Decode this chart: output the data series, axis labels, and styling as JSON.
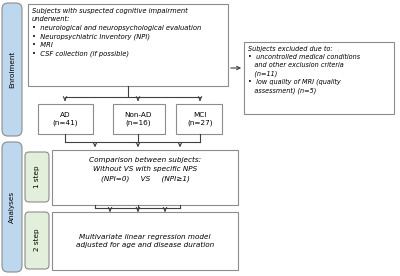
{
  "bg_color": "#ffffff",
  "enrolment_box_color": "#bdd7ee",
  "analyses_box_color": "#bdd7ee",
  "step_box_color": "#e2efda",
  "flow_box_color": "#ffffff",
  "flow_box_edge": "#8c8c8c",
  "side_label_edge": "#8c8c8c",
  "arrow_color": "#404040",
  "main_box_text": "Subjects with suspected cognitive impairment\nunderwent:\n•  neurological and neuropsychological evaluation\n•  Neuropsychiatric Inventory (NPI)\n•  MRI\n•  CSF collection (if possible)",
  "exclude_box_text": "Subjects excluded due to:\n•  uncontrolled medical conditions\n   and other exclusion criteria\n   (n=11)\n•  low quality of MRI (quality\n   assessment) (n=5)",
  "ad_text": "AD\n(n=41)",
  "nonad_text": "Non-AD\n(n=16)",
  "mci_text": "MCI\n(n=27)",
  "step1_line1": "Comparison between subjects:",
  "step1_line2": "Without VS with specific NPS",
  "step1_line3": "(NPI=0)     VS     (NPI≥1)",
  "step2_box_text": "Multivariate linear regression model\nadjusted for age and disease duration",
  "enrolment_label": "Enrolment",
  "analyses_label": "Analyses",
  "step1_label": "1 step",
  "step2_label": "2 step",
  "font_size": 5.2
}
